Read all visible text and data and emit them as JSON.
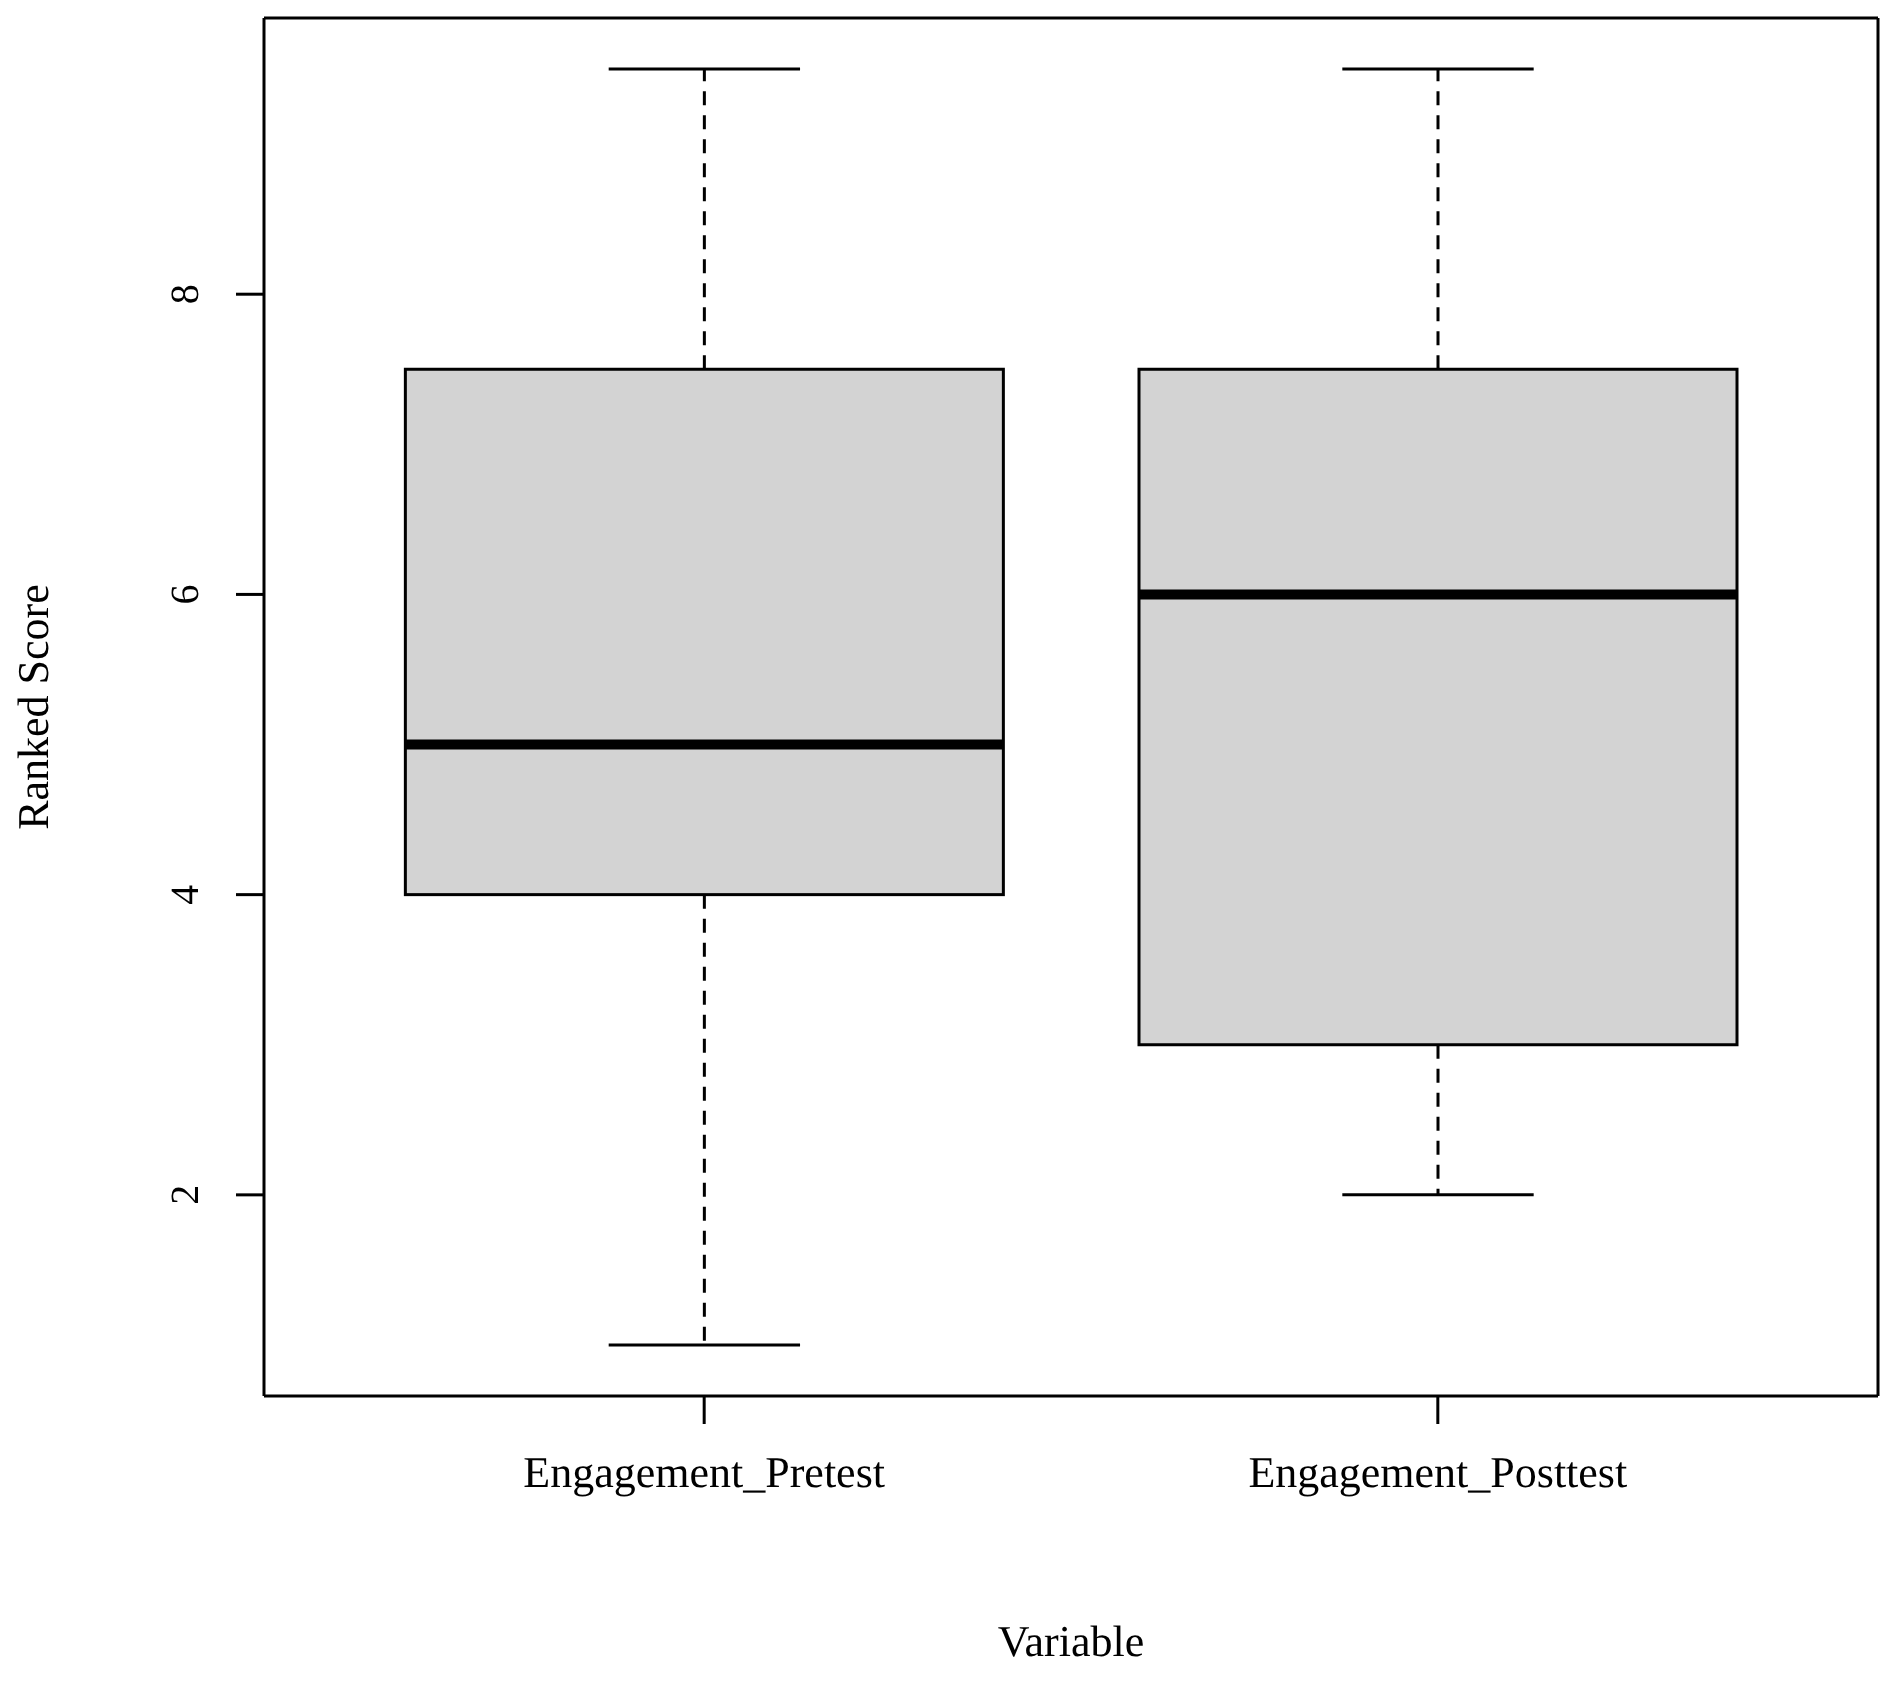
{
  "chart_data": {
    "type": "box",
    "xlabel": "Variable",
    "ylabel": "Ranked Score",
    "categories": [
      "Engagement_Pretest",
      "Engagement_Posttest"
    ],
    "boxes": [
      {
        "low": 1,
        "q1": 4,
        "median": 5,
        "q3": 7.5,
        "high": 9.5
      },
      {
        "low": 2,
        "q1": 3,
        "median": 6,
        "q3": 7.5,
        "high": 9.5
      }
    ],
    "color": "#d3d3d3",
    "line_style": "dashed",
    "ylim": [
      0.66,
      9.84
    ],
    "yticks": [
      2,
      4,
      6,
      8
    ],
    "grid": false,
    "legend": false
  }
}
